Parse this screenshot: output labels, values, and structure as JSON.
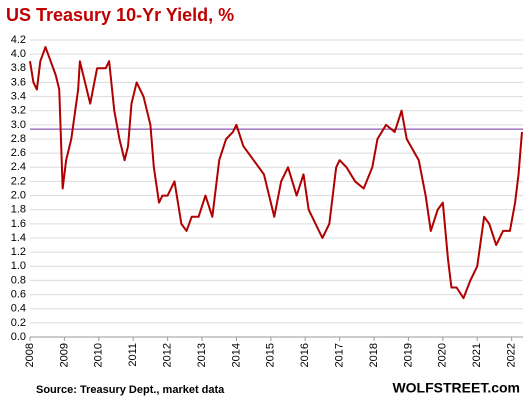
{
  "chart_data": {
    "type": "line",
    "title": "US Treasury 10-Yr Yield, %",
    "source": "Source: Treasury Dept., market data",
    "brand": "WOLFSTREET.com",
    "x": [
      2008.0,
      2008.1,
      2008.2,
      2008.3,
      2008.45,
      2008.6,
      2008.75,
      2008.85,
      2008.95,
      2009.05,
      2009.2,
      2009.4,
      2009.45,
      2009.6,
      2009.75,
      2009.95,
      2010.2,
      2010.3,
      2010.45,
      2010.6,
      2010.75,
      2010.85,
      2010.95,
      2011.1,
      2011.3,
      2011.5,
      2011.6,
      2011.75,
      2011.85,
      2012.0,
      2012.2,
      2012.4,
      2012.55,
      2012.7,
      2012.9,
      2013.1,
      2013.3,
      2013.5,
      2013.7,
      2013.9,
      2014.0,
      2014.2,
      2014.5,
      2014.8,
      2015.0,
      2015.1,
      2015.3,
      2015.5,
      2015.75,
      2015.95,
      2016.1,
      2016.5,
      2016.7,
      2016.9,
      2017.0,
      2017.2,
      2017.45,
      2017.7,
      2017.95,
      2018.1,
      2018.35,
      2018.6,
      2018.8,
      2018.95,
      2019.3,
      2019.5,
      2019.65,
      2019.85,
      2020.0,
      2020.15,
      2020.25,
      2020.4,
      2020.6,
      2020.8,
      2021.0,
      2021.2,
      2021.35,
      2021.55,
      2021.75,
      2021.95,
      2022.1,
      2022.2,
      2022.3
    ],
    "series": [
      {
        "name": "10-Yr Yield",
        "color": "#b00000",
        "values": [
          3.9,
          3.6,
          3.5,
          3.9,
          4.1,
          3.9,
          3.7,
          3.5,
          2.1,
          2.5,
          2.8,
          3.5,
          3.9,
          3.6,
          3.3,
          3.8,
          3.8,
          3.9,
          3.2,
          2.8,
          2.5,
          2.7,
          3.3,
          3.6,
          3.4,
          3.0,
          2.4,
          1.9,
          2.0,
          2.0,
          2.2,
          1.6,
          1.5,
          1.7,
          1.7,
          2.0,
          1.7,
          2.5,
          2.8,
          2.9,
          3.0,
          2.7,
          2.5,
          2.3,
          1.9,
          1.7,
          2.2,
          2.4,
          2.0,
          2.3,
          1.8,
          1.4,
          1.6,
          2.4,
          2.5,
          2.4,
          2.2,
          2.1,
          2.4,
          2.8,
          3.0,
          2.9,
          3.2,
          2.8,
          2.5,
          2.0,
          1.5,
          1.8,
          1.9,
          1.1,
          0.7,
          0.7,
          0.55,
          0.8,
          1.0,
          1.7,
          1.6,
          1.3,
          1.5,
          1.5,
          1.9,
          2.3,
          2.9
        ]
      }
    ],
    "xlim": [
      2008,
      2022.33
    ],
    "xticks": [
      2008,
      2009,
      2010,
      2011,
      2012,
      2013,
      2014,
      2015,
      2016,
      2017,
      2018,
      2019,
      2020,
      2021,
      2022
    ],
    "ylim": [
      0,
      4.2
    ],
    "yticks": [
      {
        "value": 0,
        "label": "0.0"
      },
      0.2,
      0.4,
      0.6,
      0.8,
      {
        "value": 1,
        "label": "1.0"
      },
      1.2,
      1.4,
      1.6,
      1.8,
      {
        "value": 2,
        "label": "2.0"
      },
      2.2,
      2.4,
      2.6,
      2.8,
      {
        "value": 3,
        "label": "3.0"
      },
      3.2,
      3.4,
      3.6,
      3.8,
      {
        "value": 4,
        "label": "4.0"
      },
      4.2
    ],
    "grid": true,
    "reference_line": {
      "value": 2.94,
      "color": "#7030a0"
    }
  }
}
